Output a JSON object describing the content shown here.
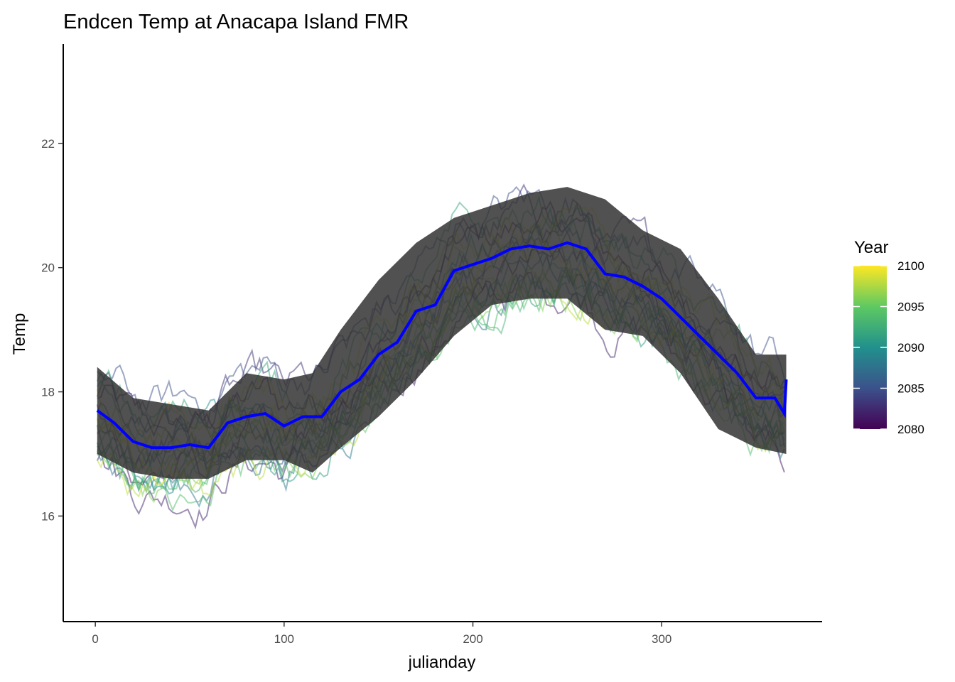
{
  "chart_data": {
    "type": "line",
    "title": "Endcen Temp at Anacapa Island FMR",
    "xlabel": "julianday",
    "ylabel": "Temp",
    "xlim": [
      -17,
      385
    ],
    "ylim": [
      14.3,
      23.6
    ],
    "x_ticks": [
      0,
      100,
      200,
      300
    ],
    "y_ticks": [
      16,
      18,
      20,
      22
    ],
    "x_tick_labels": [
      "0",
      "100",
      "200",
      "300"
    ],
    "y_tick_labels": [
      "16",
      "18",
      "20",
      "22"
    ],
    "grid": false,
    "legend": {
      "title": "Year",
      "placement": "right",
      "kind": "colorbar",
      "range": [
        2080,
        2100
      ],
      "ticks": [
        2080,
        2085,
        2090,
        2095,
        2100
      ],
      "tick_labels": [
        "2080",
        "2085",
        "2090",
        "2095",
        "2100"
      ]
    },
    "colorscale": [
      "#440154",
      "#3b528b",
      "#21918c",
      "#5ec962",
      "#fde725"
    ],
    "years": [
      2080,
      2081,
      2082,
      2083,
      2084,
      2085,
      2086,
      2087,
      2088,
      2089,
      2090,
      2091,
      2092,
      2093,
      2094,
      2095,
      2096,
      2097,
      2098,
      2099,
      2100
    ],
    "mean_series": {
      "color": "#0000ff",
      "x": [
        1,
        10,
        20,
        30,
        40,
        50,
        60,
        70,
        80,
        90,
        100,
        110,
        120,
        130,
        140,
        150,
        160,
        170,
        180,
        190,
        200,
        210,
        220,
        230,
        240,
        250,
        260,
        270,
        280,
        290,
        300,
        310,
        320,
        330,
        340,
        350,
        360,
        365,
        366
      ],
      "y": [
        17.7,
        17.5,
        17.2,
        17.1,
        17.1,
        17.15,
        17.1,
        17.5,
        17.6,
        17.65,
        17.45,
        17.6,
        17.6,
        18.0,
        18.2,
        18.6,
        18.8,
        19.3,
        19.4,
        19.95,
        20.05,
        20.15,
        20.3,
        20.35,
        20.3,
        20.4,
        20.3,
        19.9,
        19.85,
        19.7,
        19.5,
        19.2,
        18.9,
        18.6,
        18.3,
        17.9,
        17.9,
        17.65,
        18.2
      ]
    },
    "band": {
      "color": "#333333",
      "x": [
        1,
        20,
        40,
        60,
        80,
        100,
        115,
        130,
        150,
        170,
        190,
        210,
        230,
        250,
        270,
        290,
        310,
        330,
        350,
        366
      ],
      "lower": [
        17.0,
        16.7,
        16.6,
        16.6,
        16.9,
        16.9,
        16.7,
        17.1,
        17.6,
        18.2,
        18.9,
        19.4,
        19.5,
        19.5,
        19.0,
        18.9,
        18.3,
        17.4,
        17.1,
        17.0
      ],
      "upper": [
        18.4,
        17.9,
        17.8,
        17.7,
        18.3,
        18.2,
        18.3,
        19.0,
        19.8,
        20.4,
        20.8,
        21.0,
        21.2,
        21.3,
        21.1,
        20.6,
        20.3,
        19.5,
        18.6,
        18.6
      ]
    },
    "noise_range": [
      -0.9,
      0.9
    ]
  }
}
